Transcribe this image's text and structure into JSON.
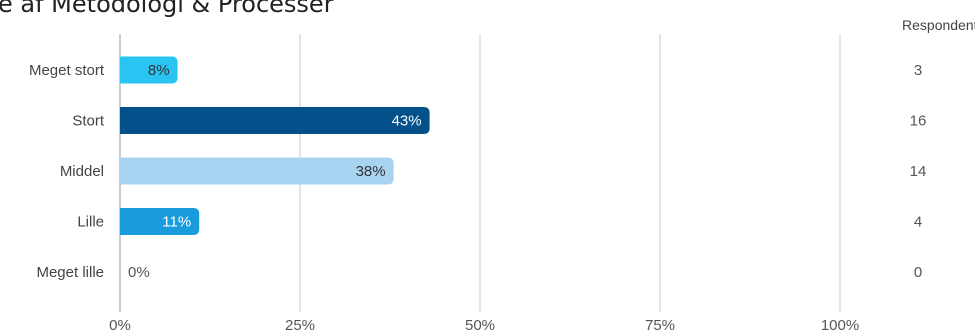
{
  "chart_data": {
    "type": "bar",
    "orientation": "horizontal",
    "title": "e af Metodologi & Processer",
    "categories": [
      "Meget stort",
      "Stort",
      "Middel",
      "Lille",
      "Meget lille"
    ],
    "values": [
      8,
      43,
      38,
      11,
      0
    ],
    "value_labels": [
      "8%",
      "43%",
      "38%",
      "11%",
      "0%"
    ],
    "counts": [
      3,
      16,
      14,
      4,
      0
    ],
    "count_header": "Respondenter",
    "bar_colors": [
      "#29c4f1",
      "#03508a",
      "#a8d4f2",
      "#1a9bdc",
      "#1a9bdc"
    ],
    "label_colors": [
      "#333333",
      "#ffffff",
      "#333333",
      "#ffffff",
      "#555555"
    ],
    "xlim": [
      0,
      100
    ],
    "xticks": [
      0,
      25,
      50,
      75,
      100
    ],
    "xtick_labels": [
      "0%",
      "25%",
      "50%",
      "75%",
      "100%"
    ],
    "grid": true,
    "gridline_color": "#c8c8c8"
  }
}
